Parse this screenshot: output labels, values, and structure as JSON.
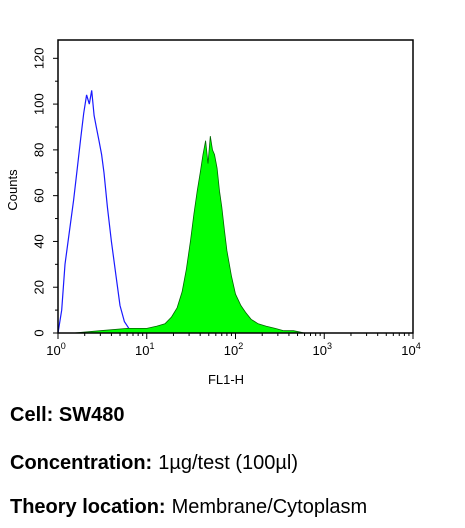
{
  "chart_data": {
    "type": "area",
    "xlabel": "FL1-H",
    "ylabel": "Counts",
    "xscale": "log",
    "xlim": [
      1,
      10000
    ],
    "ylim": [
      0,
      128
    ],
    "yticks": [
      0,
      20,
      40,
      60,
      80,
      100,
      120
    ],
    "xticks": [
      {
        "value": 1,
        "base": "10",
        "exp": "0"
      },
      {
        "value": 10,
        "base": "10",
        "exp": "1"
      },
      {
        "value": 100,
        "base": "10",
        "exp": "2"
      },
      {
        "value": 1000,
        "base": "10",
        "exp": "3"
      },
      {
        "value": 10000,
        "base": "10",
        "exp": "4"
      }
    ],
    "grid": false,
    "series": [
      {
        "style": "outline",
        "color": "#1a1aff",
        "x": [
          1.0,
          1.1,
          1.2,
          1.35,
          1.5,
          1.65,
          1.8,
          1.95,
          2.1,
          2.25,
          2.4,
          2.55,
          2.7,
          2.9,
          3.1,
          3.3,
          3.6,
          4.0,
          4.5,
          5.0,
          5.6,
          6.3,
          7.0,
          8.0,
          9.0
        ],
        "y": [
          0,
          10,
          30,
          45,
          58,
          72,
          85,
          96,
          104,
          100,
          106,
          95,
          90,
          84,
          78,
          70,
          55,
          40,
          25,
          12,
          5,
          2,
          1,
          0,
          0
        ]
      },
      {
        "style": "filled",
        "color": "#00ff00",
        "x": [
          1.5,
          3,
          6,
          10,
          13,
          16,
          19,
          22,
          25,
          28,
          31,
          34,
          37,
          40,
          43,
          46,
          49,
          52,
          55,
          58,
          62,
          66,
          70,
          75,
          80,
          90,
          100,
          115,
          130,
          150,
          180,
          220,
          280,
          350,
          450,
          600
        ],
        "y": [
          0,
          1,
          2,
          2,
          3,
          4,
          7,
          11,
          18,
          28,
          40,
          52,
          62,
          70,
          78,
          84,
          74,
          86,
          80,
          78,
          72,
          62,
          55,
          45,
          36,
          25,
          17,
          12,
          9,
          6,
          4,
          3,
          2,
          1,
          1,
          0
        ]
      }
    ]
  },
  "captions": {
    "cell_label": "Cell:",
    "cell_value": "SW480",
    "concentration_label": "Concentration:",
    "concentration_value": "1µg/test (100µl)",
    "location_label": "Theory location:",
    "location_value": "Membrane/Cytoplasm"
  }
}
